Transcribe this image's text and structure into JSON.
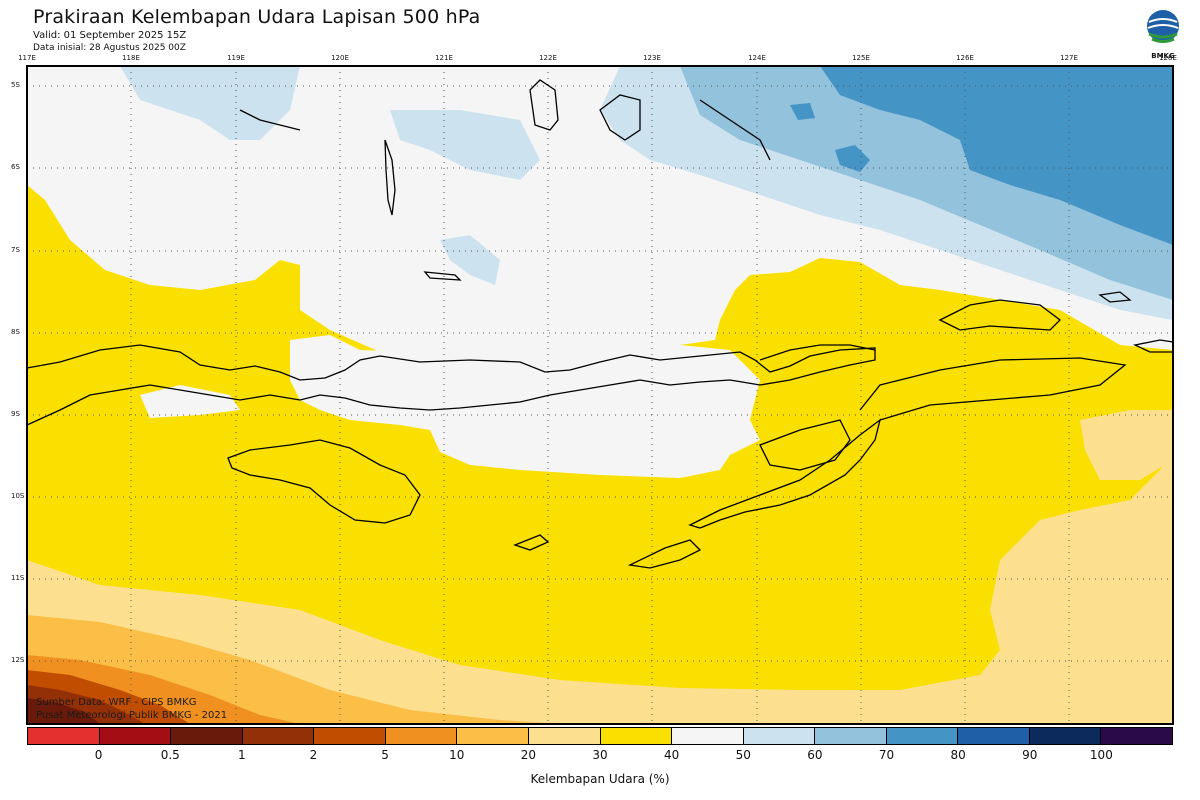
{
  "header": {
    "title": "Prakiraan Kelembapan Udara Lapisan 500 hPa",
    "valid": "Valid: 01 September 2025 15Z",
    "initial": "Data inisial: 28 Agustus 2025 00Z"
  },
  "logo": {
    "text": "BMKG",
    "icon": "bmkg-logo"
  },
  "axes": {
    "lon_labels": [
      "117E",
      "118E",
      "119E",
      "120E",
      "121E",
      "122E",
      "123E",
      "124E",
      "125E",
      "126E",
      "127E",
      "128E"
    ],
    "lat_labels": [
      "5S",
      "6S",
      "7S",
      "8S",
      "9S",
      "10S",
      "11S",
      "12S"
    ]
  },
  "legend": {
    "label": "Kelembapan Udara (%)",
    "ticks": [
      "0",
      "0.5",
      "1",
      "2",
      "5",
      "10",
      "20",
      "30",
      "40",
      "50",
      "60",
      "70",
      "80",
      "90",
      "100"
    ],
    "colors": [
      "#e53030",
      "#a40d14",
      "#6a1a0a",
      "#933008",
      "#c04d00",
      "#f09020",
      "#fbbf48",
      "#fde08f",
      "#f9e000",
      "#f5f5f5",
      "#cde2ef",
      "#92c2dc",
      "#4594c6",
      "#1e5fa8",
      "#0c2a5c",
      "#2a0a48"
    ]
  },
  "credits": {
    "line1": "Sumber Data: WRF - CIPS BMKG",
    "line2": "Pusat Meteorologi Publik BMKG - 2021"
  }
}
